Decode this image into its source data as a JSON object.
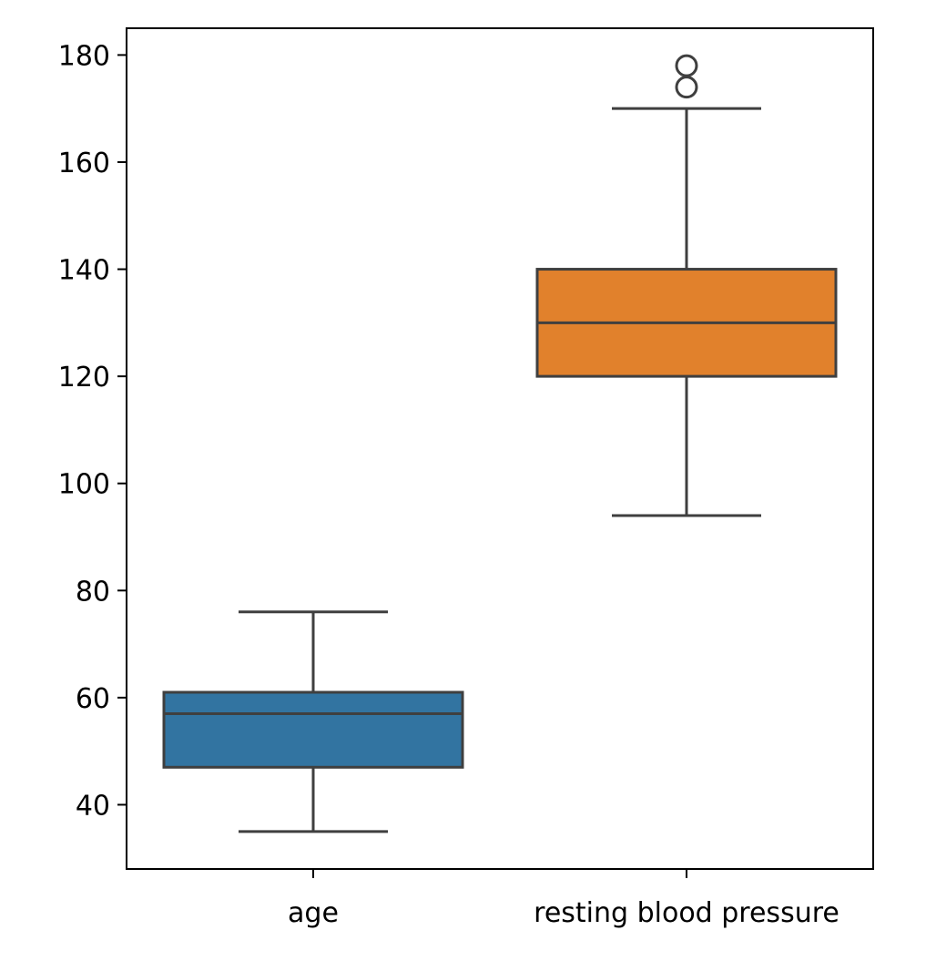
{
  "chart_data": {
    "type": "box",
    "categories": [
      "age",
      "resting blood pressure"
    ],
    "colors": [
      "#3274a1",
      "#e1812c"
    ],
    "ylim": [
      28,
      185
    ],
    "yticks": [
      40,
      60,
      80,
      100,
      120,
      140,
      160,
      180
    ],
    "boxes": [
      {
        "category": "age",
        "whisker_low": 35,
        "q1": 47,
        "median": 57,
        "q3": 61,
        "whisker_high": 76,
        "outliers": []
      },
      {
        "category": "resting blood pressure",
        "whisker_low": 94,
        "q1": 120,
        "median": 130,
        "q3": 140,
        "whisker_high": 170,
        "outliers": [
          174,
          178
        ]
      }
    ],
    "grid": false
  }
}
